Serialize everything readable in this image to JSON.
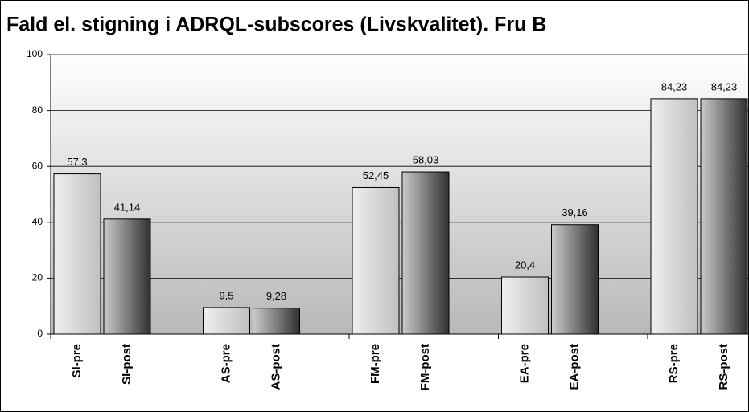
{
  "chart_data": {
    "type": "bar",
    "title": "Fald el. stigning i ADRQL-subscores (Livskvalitet). Fru B",
    "categories": [
      "SI-pre",
      "SI-post",
      "AS-pre",
      "AS-post",
      "FM-pre",
      "FM-post",
      "EA-pre",
      "EA-post",
      "RS-pre",
      "RS-post"
    ],
    "values": [
      57.3,
      41.14,
      9.5,
      9.28,
      52.45,
      58.03,
      20.4,
      39.16,
      84.23,
      84.23
    ],
    "value_labels": [
      "57,3",
      "41,14",
      "9,5",
      "9,28",
      "52,45",
      "58,03",
      "20,4",
      "39,16",
      "84,23",
      "84,23"
    ],
    "colors": [
      "#c0c0c0",
      "#303030",
      "#c0c0c0",
      "#303030",
      "#c0c0c0",
      "#303030",
      "#c0c0c0",
      "#303030",
      "#c0c0c0",
      "#303030"
    ],
    "ylim": [
      0,
      100
    ],
    "yticks": [
      0,
      20,
      40,
      60,
      80,
      100
    ],
    "grid": true
  }
}
